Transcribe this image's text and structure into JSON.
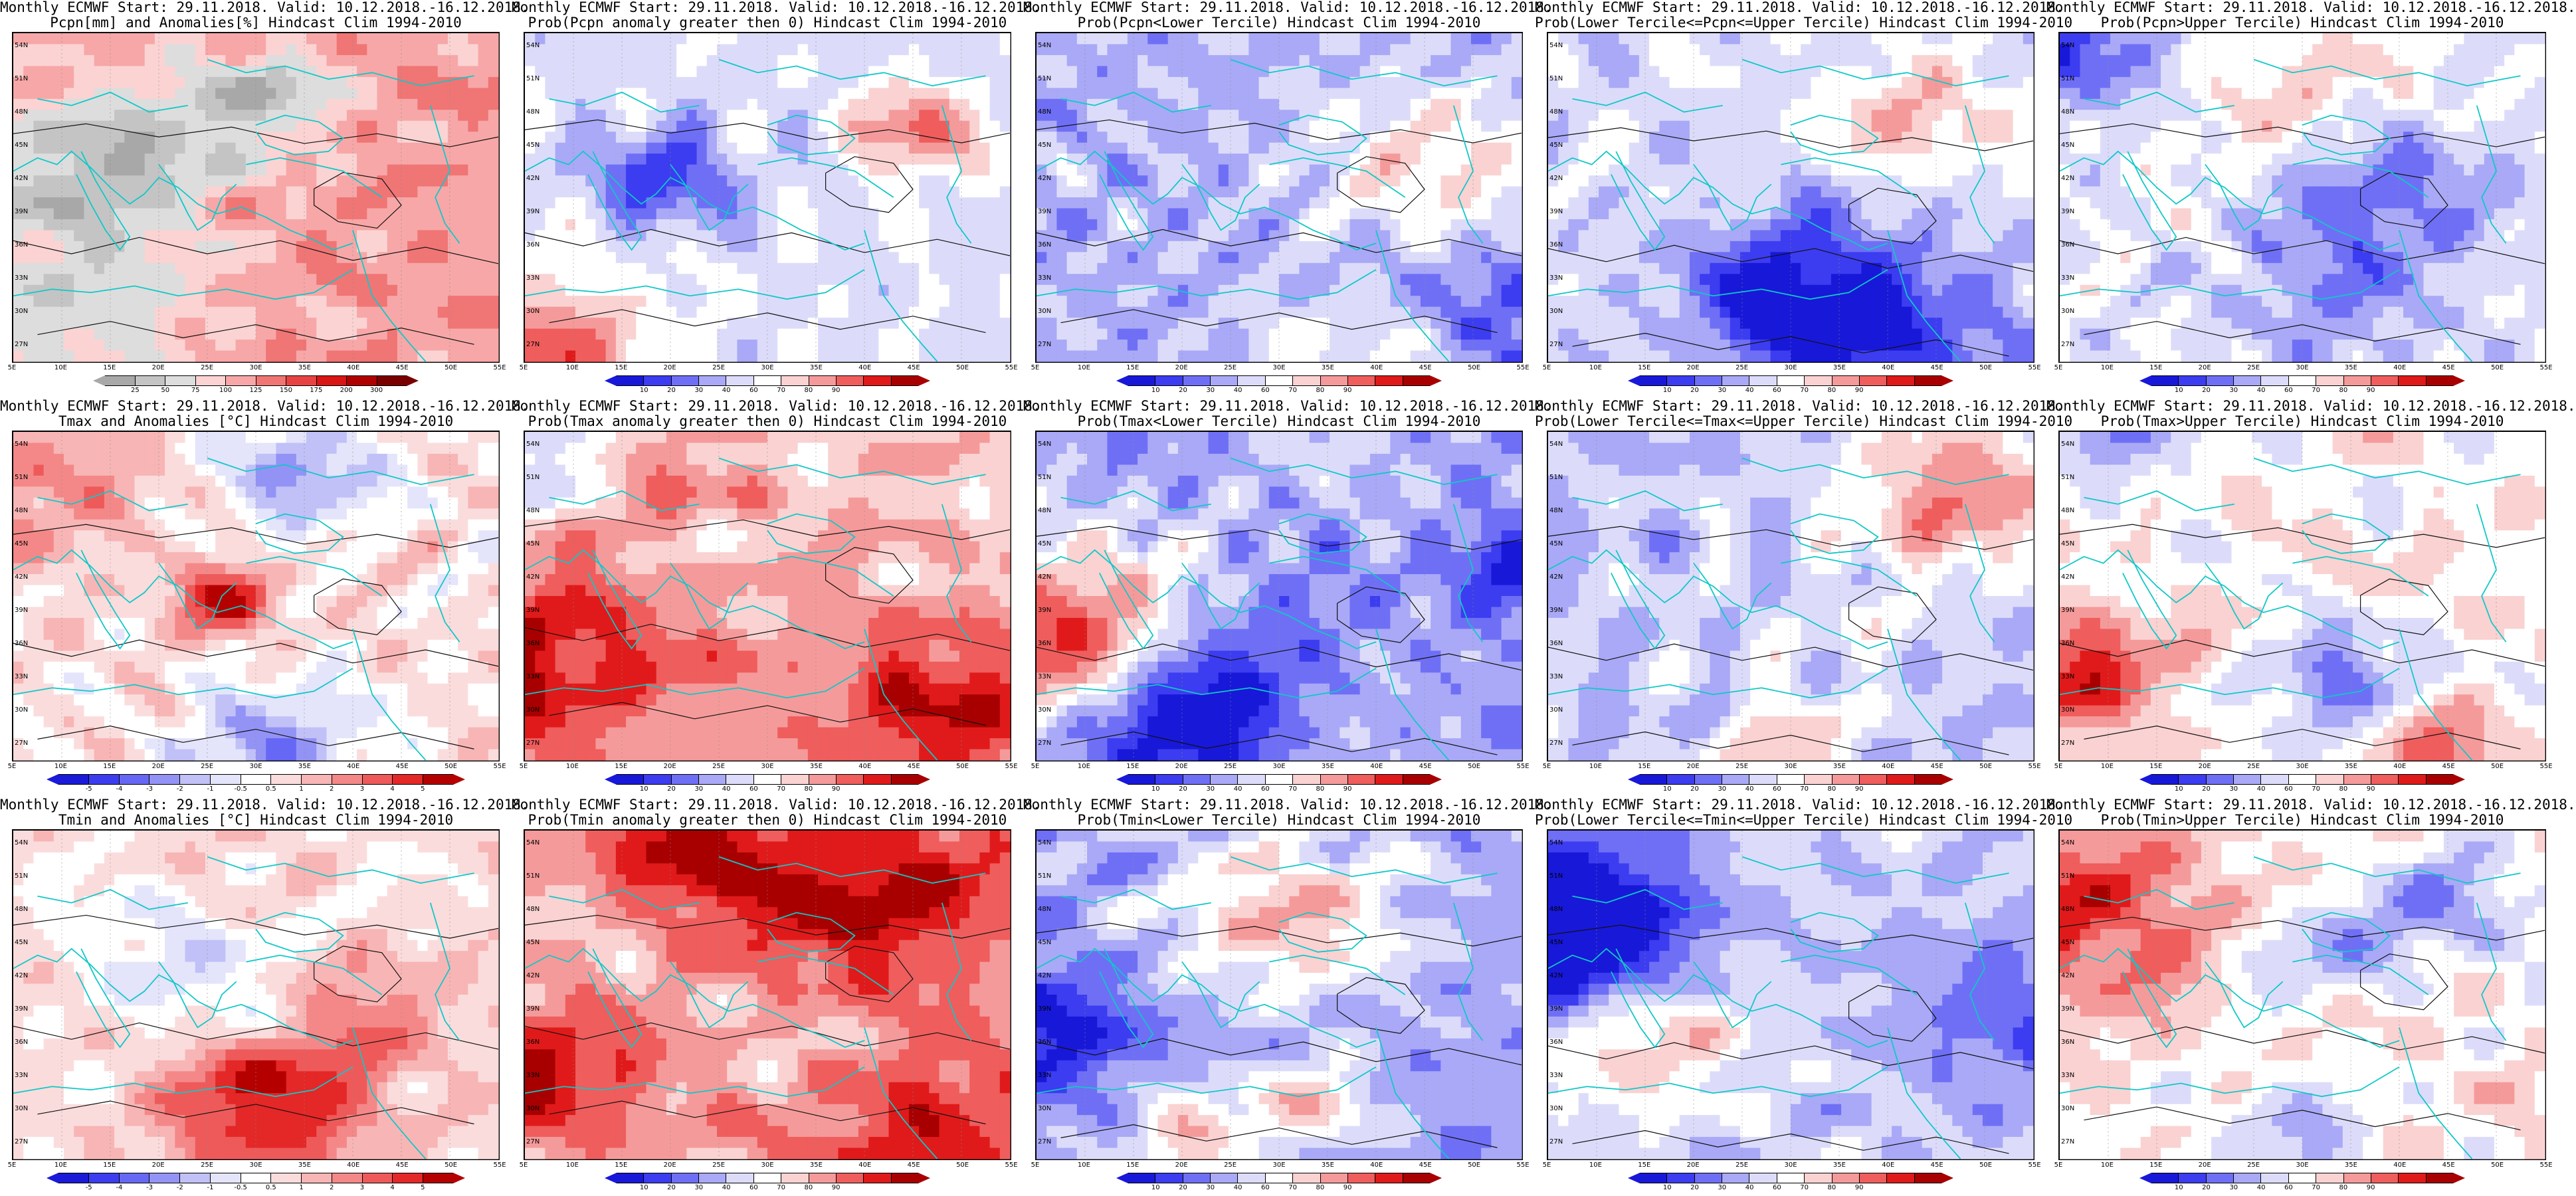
{
  "palettes": {
    "precip": [
      "#a8a8a8",
      "#c4c4c4",
      "#dddddd",
      "#fbd3d3",
      "#f7a7a7",
      "#f07575",
      "#e84343",
      "#d91515",
      "#b00000",
      "#7a0000"
    ],
    "prob": [
      "#1818d9",
      "#3c3cf0",
      "#6f6ff6",
      "#a9a9f7",
      "#dcdcfa",
      "#ffffff",
      "#fad2d2",
      "#f59a9a",
      "#ef5d5d",
      "#e01a1a",
      "#a80000"
    ],
    "temp": [
      "#1a1ad8",
      "#3d3df0",
      "#6767f5",
      "#9393f6",
      "#c1c1f8",
      "#e4e4fb",
      "#ffffff",
      "#fbdcdc",
      "#f8b5b5",
      "#f48888",
      "#ee5a5a",
      "#e42727",
      "#b50000"
    ]
  },
  "map_axes": {
    "lat_labels": [
      "54N",
      "51N",
      "48N",
      "45N",
      "42N",
      "39N",
      "36N",
      "33N",
      "30N",
      "27N"
    ],
    "lon_labels": [
      "5E",
      "10E",
      "15E",
      "20E",
      "25E",
      "30E",
      "35E",
      "40E",
      "45E",
      "50E",
      "55E"
    ]
  },
  "rows": [
    {
      "panels": [
        {
          "line1": "Monthly ECMWF Start: 29.11.2018. Valid: 10.12.2018.-16.12.2018.",
          "line2": "Pcpn[mm] and Anomalies[%] Hindcast Clim 1994-2010",
          "palette": "precip",
          "bias": -0.05,
          "seed": 11,
          "ticks": [
            "25",
            "50",
            "75",
            "100",
            "125",
            "150",
            "175",
            "200",
            "300"
          ]
        },
        {
          "line1": "Monthly ECMWF Start: 29.11.2018. Valid: 10.12.2018.-16.12.2018.",
          "line2": "Prob(Pcpn anomaly greater then 0) Hindcast Clim 1994-2010",
          "palette": "prob",
          "bias": -0.15,
          "seed": 23,
          "ticks": [
            "10",
            "20",
            "30",
            "40",
            "60",
            "70",
            "80",
            "90"
          ]
        },
        {
          "line1": "Monthly ECMWF Start: 29.11.2018. Valid: 10.12.2018.-16.12.2018.",
          "line2": "Prob(Pcpn<Lower Tercile) Hindcast Clim 1994-2010",
          "palette": "prob",
          "bias": -0.35,
          "seed": 37,
          "ticks": [
            "10",
            "20",
            "30",
            "40",
            "60",
            "70",
            "80",
            "90"
          ]
        },
        {
          "line1": "Monthly ECMWF Start: 29.11.2018. Valid: 10.12.2018.-16.12.2018.",
          "line2": "Prob(Lower Tercile<=Pcpn<=Upper Tercile) Hindcast Clim 1994-2010",
          "palette": "prob",
          "bias": -0.18,
          "seed": 41,
          "ticks": [
            "10",
            "20",
            "30",
            "40",
            "60",
            "70",
            "80",
            "90"
          ]
        },
        {
          "line1": "Monthly ECMWF Start: 29.11.2018. Valid: 10.12.2018.-16.12.2018.",
          "line2": "Prob(Pcpn>Upper Tercile) Hindcast Clim 1994-2010",
          "palette": "prob",
          "bias": -0.12,
          "seed": 53,
          "ticks": [
            "10",
            "20",
            "30",
            "40",
            "60",
            "70",
            "80",
            "90"
          ]
        }
      ]
    },
    {
      "panels": [
        {
          "line1": "Monthly ECMWF Start: 29.11.2018. Valid: 10.12.2018.-16.12.2018.",
          "line2": "Tmax and Anomalies [°C] Hindcast Clim 1994-2010",
          "palette": "temp",
          "bias": 0.12,
          "seed": 61,
          "ticks": [
            "-5",
            "-4",
            "-3",
            "-2",
            "-1",
            "-0.5",
            "0.5",
            "1",
            "2",
            "3",
            "4",
            "5"
          ]
        },
        {
          "line1": "Monthly ECMWF Start: 29.11.2018. Valid: 10.12.2018.-16.12.2018.",
          "line2": "Prob(Tmax anomaly greater then 0) Hindcast Clim 1994-2010",
          "palette": "prob",
          "bias": 0.22,
          "seed": 71,
          "ticks": [
            "10",
            "20",
            "30",
            "40",
            "60",
            "70",
            "80",
            "90"
          ]
        },
        {
          "line1": "Monthly ECMWF Start: 29.11.2018. Valid: 10.12.2018.-16.12.2018.",
          "line2": "Prob(Tmax<Lower Tercile) Hindcast Clim 1994-2010",
          "palette": "prob",
          "bias": -0.35,
          "seed": 83,
          "ticks": [
            "10",
            "20",
            "30",
            "40",
            "60",
            "70",
            "80",
            "90"
          ]
        },
        {
          "line1": "Monthly ECMWF Start: 29.11.2018. Valid: 10.12.2018.-16.12.2018.",
          "line2": "Prob(Lower Tercile<=Tmax<=Upper Tercile) Hindcast Clim 1994-2010",
          "palette": "prob",
          "bias": -0.3,
          "seed": 97,
          "ticks": [
            "10",
            "20",
            "30",
            "40",
            "60",
            "70",
            "80",
            "90"
          ]
        },
        {
          "line1": "Monthly ECMWF Start: 29.11.2018. Valid: 10.12.2018.-16.12.2018.",
          "line2": "Prob(Tmax>Upper Tercile) Hindcast Clim 1994-2010",
          "palette": "prob",
          "bias": 0.05,
          "seed": 103,
          "ticks": [
            "10",
            "20",
            "30",
            "40",
            "60",
            "70",
            "80",
            "90"
          ]
        }
      ]
    },
    {
      "panels": [
        {
          "line1": "Monthly ECMWF Start: 29.11.2018. Valid: 10.12.2018.-16.12.2018.",
          "line2": "Tmin and Anomalies [°C] Hindcast Clim 1994-2010",
          "palette": "temp",
          "bias": 0.18,
          "seed": 113,
          "ticks": [
            "-5",
            "-4",
            "-3",
            "-2",
            "-1",
            "-0.5",
            "0.5",
            "1",
            "2",
            "3",
            "4",
            "5"
          ]
        },
        {
          "line1": "Monthly ECMWF Start: 29.11.2018. Valid: 10.12.2018.-16.12.2018.",
          "line2": "Prob(Tmin anomaly greater then 0) Hindcast Clim 1994-2010",
          "palette": "prob",
          "bias": 0.3,
          "seed": 127,
          "ticks": [
            "10",
            "20",
            "30",
            "40",
            "60",
            "70",
            "80",
            "90"
          ]
        },
        {
          "line1": "Monthly ECMWF Start: 29.11.2018. Valid: 10.12.2018.-16.12.2018.",
          "line2": "Prob(Tmin<Lower Tercile) Hindcast Clim 1994-2010",
          "palette": "prob",
          "bias": -0.42,
          "seed": 131,
          "ticks": [
            "10",
            "20",
            "30",
            "40",
            "60",
            "70",
            "80",
            "90"
          ]
        },
        {
          "line1": "Monthly ECMWF Start: 29.11.2018. Valid: 10.12.2018.-16.12.2018.",
          "line2": "Prob(Lower Tercile<=Tmin<=Upper Tercile) Hindcast Clim 1994-2010",
          "palette": "prob",
          "bias": -0.25,
          "seed": 139,
          "ticks": [
            "10",
            "20",
            "30",
            "40",
            "60",
            "70",
            "80",
            "90"
          ]
        },
        {
          "line1": "Monthly ECMWF Start: 29.11.2018. Valid: 10.12.2018.-16.12.2018.",
          "line2": "Prob(Tmin>Upper Tercile) Hindcast Clim 1994-2010",
          "palette": "prob",
          "bias": 0.08,
          "seed": 149,
          "ticks": [
            "10",
            "20",
            "30",
            "40",
            "60",
            "70",
            "80",
            "90"
          ]
        }
      ]
    }
  ]
}
